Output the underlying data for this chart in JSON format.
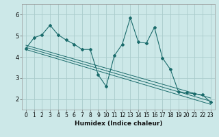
{
  "title": "",
  "xlabel": "Humidex (Indice chaleur)",
  "bg_color": "#cce8e8",
  "grid_color": "#aacccc",
  "line_color": "#1a6b6b",
  "xlim": [
    -0.5,
    23.5
  ],
  "ylim": [
    1.5,
    6.5
  ],
  "xticks": [
    0,
    1,
    2,
    3,
    4,
    5,
    6,
    7,
    8,
    9,
    10,
    11,
    12,
    13,
    14,
    15,
    16,
    17,
    18,
    19,
    20,
    21,
    22,
    23
  ],
  "yticks": [
    2,
    3,
    4,
    5,
    6
  ],
  "line1_y": [
    4.4,
    4.9,
    5.05,
    5.5,
    5.05,
    4.8,
    4.6,
    4.35,
    4.35,
    3.15,
    2.6,
    4.05,
    4.6,
    5.85,
    4.7,
    4.65,
    5.4,
    3.95,
    3.4,
    2.35,
    2.3,
    2.25,
    2.2,
    1.85
  ],
  "trend1_y": [
    4.55,
    2.05
  ],
  "trend2_y": [
    4.45,
    1.9
  ],
  "trend3_y": [
    4.35,
    1.75
  ],
  "xlabel_fontsize": 6.5,
  "tick_fontsize": 5.5
}
